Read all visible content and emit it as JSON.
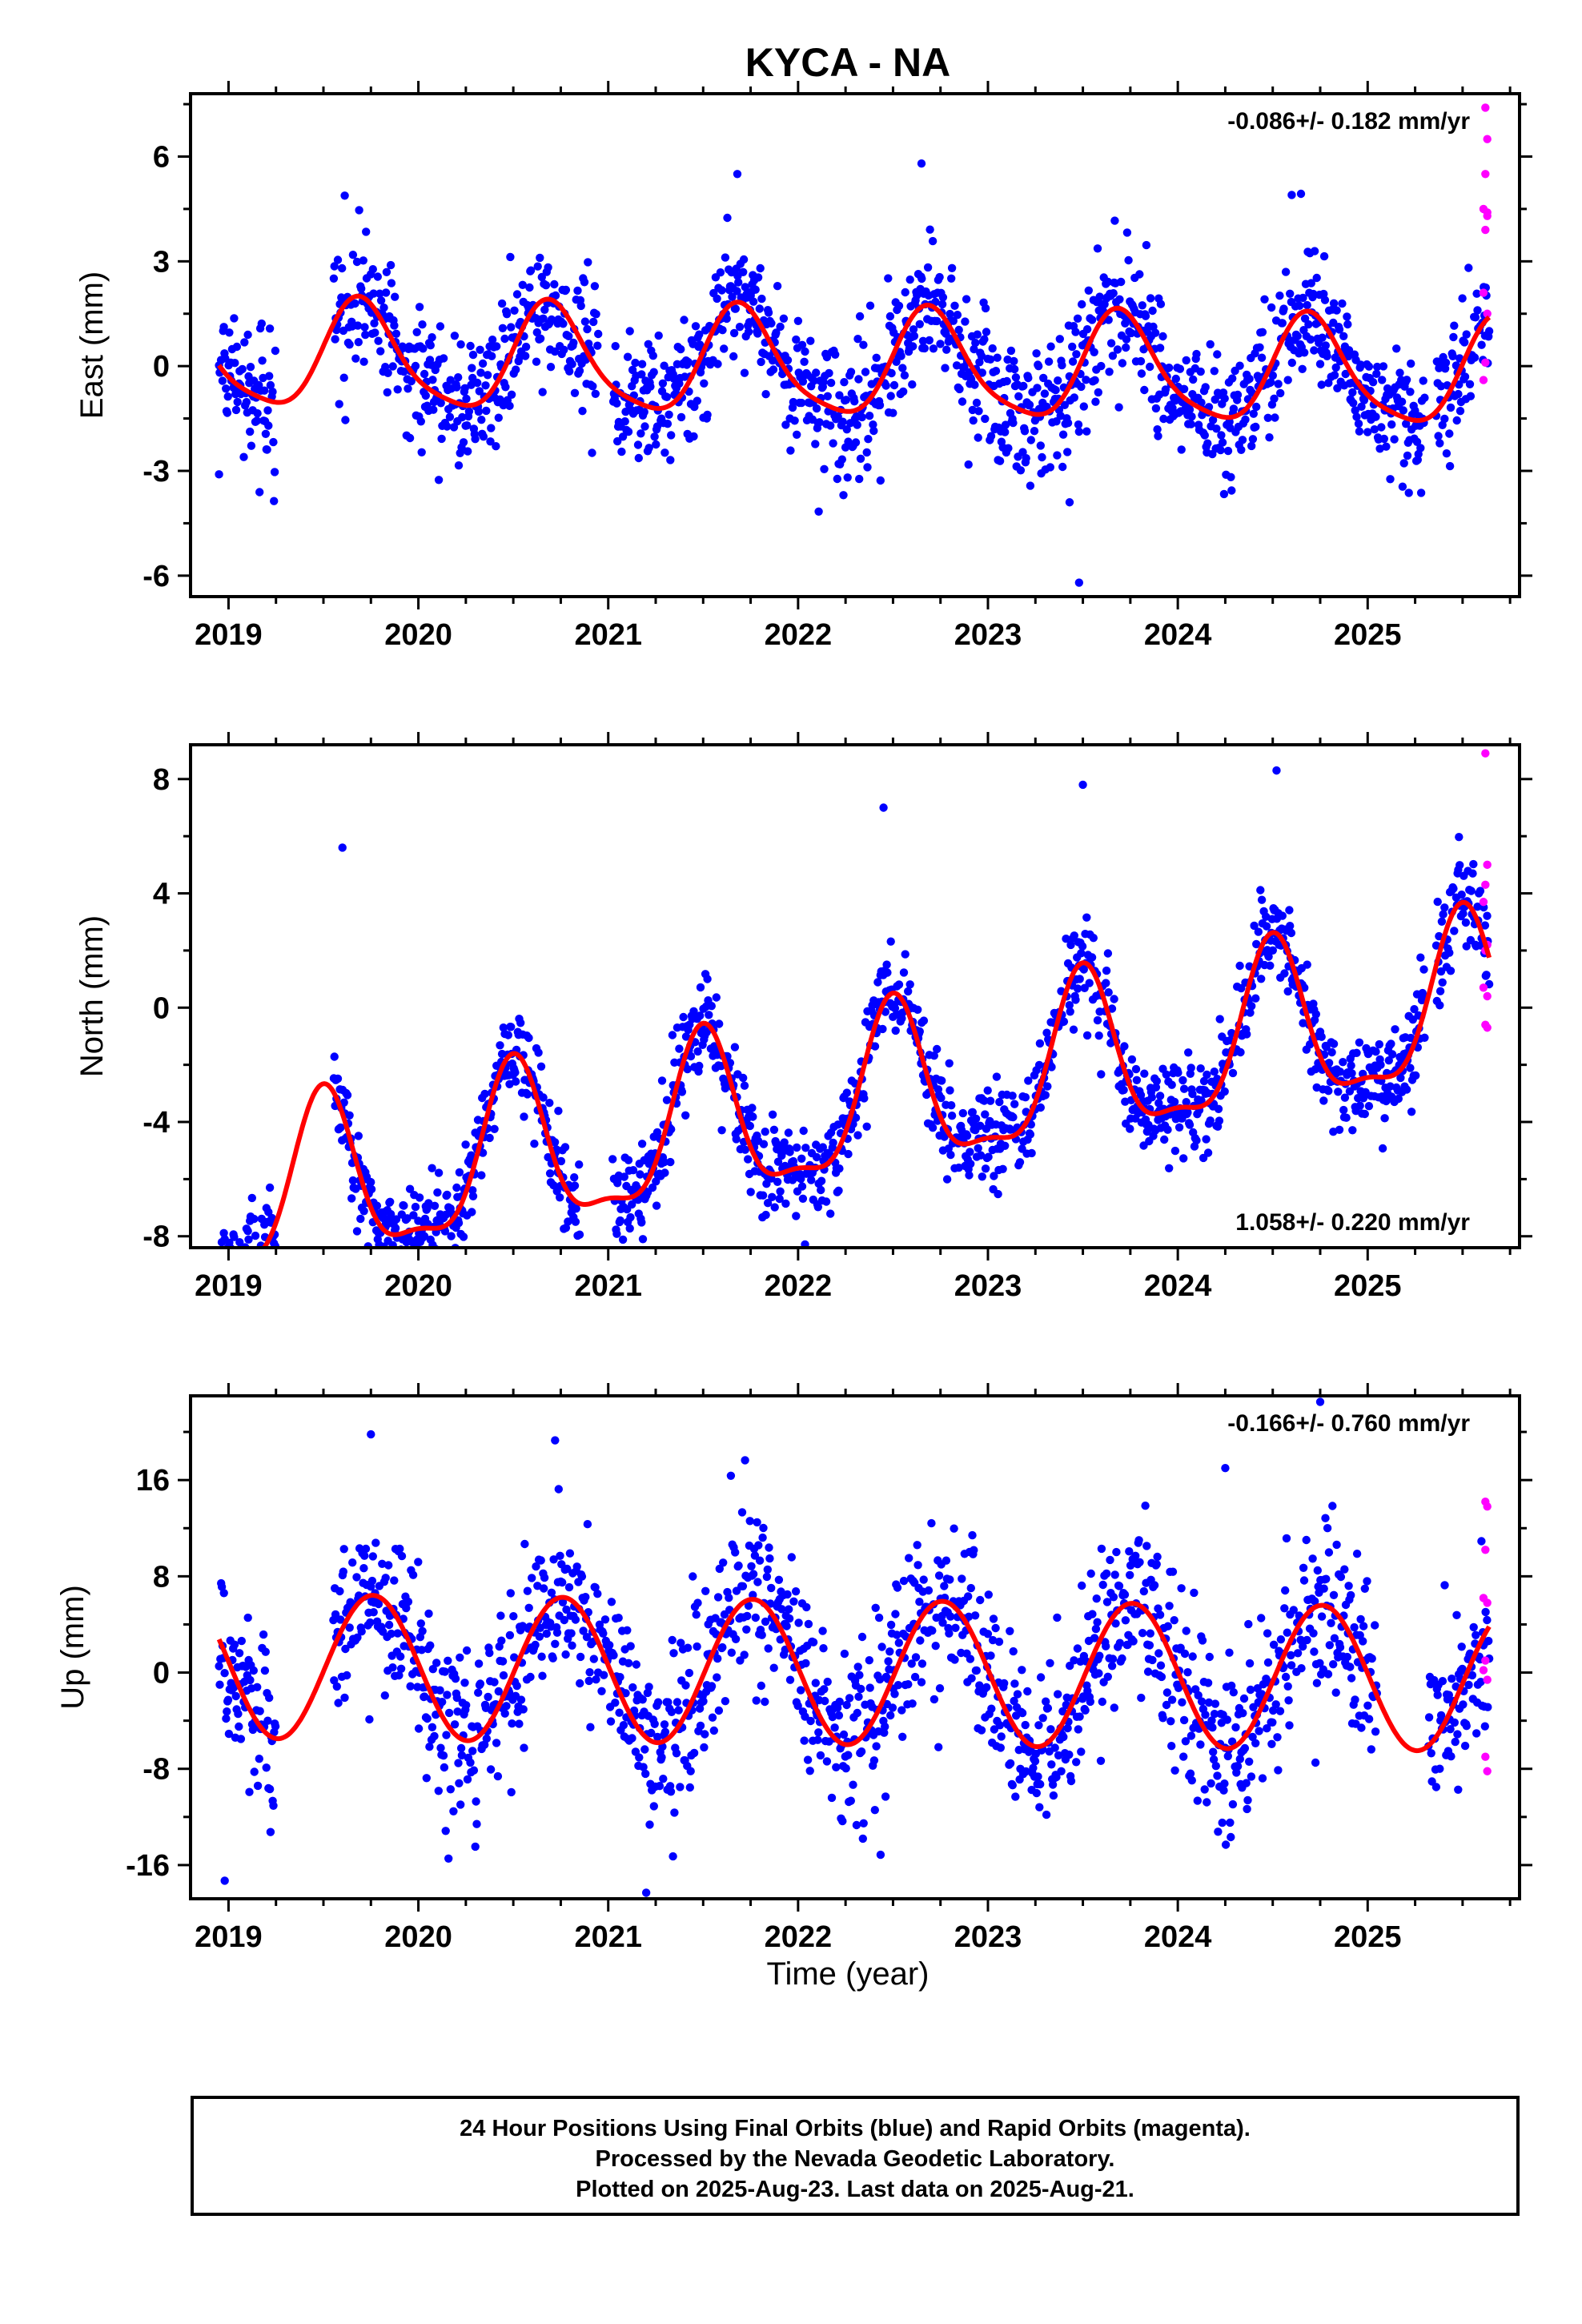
{
  "title": "KYCA - NA",
  "xlabel": "Time (year)",
  "caption": {
    "line1": "24 Hour Positions Using Final Orbits (blue) and Rapid Orbits (magenta).",
    "line2": "Processed by the Nevada Geodetic Laboratory.",
    "line3": "Plotted on 2025-Aug-23. Last data on 2025-Aug-21."
  },
  "colors": {
    "final": "#0000ff",
    "rapid": "#ff00ff",
    "model": "#ff0000",
    "axis": "#000000"
  },
  "chart_data": [
    {
      "type": "scatter",
      "ylabel": "East (mm)",
      "rate_text": "-0.086+/- 0.182 mm/yr",
      "rate_position": "top-right",
      "xlim": [
        2018.8,
        2025.8
      ],
      "ylim": [
        -6.6,
        7.8
      ],
      "x_ticks": [
        2019,
        2020,
        2021,
        2022,
        2023,
        2024,
        2025
      ],
      "y_ticks": [
        -6,
        -3,
        0,
        3,
        6
      ],
      "y_tick_labels": [
        "-6",
        "-3",
        "0",
        "3",
        "6"
      ],
      "x_start": 2018.95,
      "x_end": 2025.64,
      "gaps": [
        [
          2019.25,
          2019.55
        ],
        [
          2020.95,
          2021.02
        ],
        [
          2025.3,
          2025.36
        ]
      ],
      "model": {
        "offset": 0.0,
        "trend": -0.086,
        "annual_amp": 1.5,
        "annual_peak": 2019.7,
        "semi_amp": 0.3,
        "semi_phase": 0.5
      },
      "noise": 0.95,
      "n_points": 1850,
      "rapid_points": [
        {
          "x": 2025.62,
          "y": 7.4
        },
        {
          "x": 2025.63,
          "y": 6.5
        },
        {
          "x": 2025.62,
          "y": 5.5
        },
        {
          "x": 2025.61,
          "y": 4.5
        },
        {
          "x": 2025.63,
          "y": 4.3
        },
        {
          "x": 2025.62,
          "y": 3.9
        },
        {
          "x": 2025.61,
          "y": 2.1
        },
        {
          "x": 2025.63,
          "y": 1.5
        },
        {
          "x": 2025.62,
          "y": 0.1
        },
        {
          "x": 2025.61,
          "y": -0.4
        },
        {
          "x": 2025.63,
          "y": 4.4
        }
      ],
      "outliers": [
        {
          "x": 2022.65,
          "y": 5.8
        },
        {
          "x": 2021.68,
          "y": 5.5
        },
        {
          "x": 2023.48,
          "y": -6.2
        },
        {
          "x": 2023.43,
          "y": -3.9
        },
        {
          "x": 2024.6,
          "y": 4.9
        },
        {
          "x": 2018.95,
          "y": -3.1
        }
      ]
    },
    {
      "type": "scatter",
      "ylabel": "North (mm)",
      "rate_text": "1.058+/- 0.220 mm/yr",
      "rate_position": "bottom-right",
      "xlim": [
        2018.8,
        2025.8
      ],
      "ylim": [
        -8.4,
        9.2
      ],
      "x_ticks": [
        2019,
        2020,
        2021,
        2022,
        2023,
        2024,
        2025
      ],
      "y_ticks": [
        -8,
        -4,
        0,
        4,
        8
      ],
      "y_tick_labels": [
        "-8",
        "-4",
        "0",
        "4",
        "8"
      ],
      "x_start": 2018.95,
      "x_end": 2025.64,
      "gaps": [
        [
          2019.25,
          2019.55
        ],
        [
          2020.85,
          2021.02
        ],
        [
          2025.3,
          2025.36
        ]
      ],
      "model": {
        "offset": -3.4,
        "trend": 1.058,
        "annual_amp": 2.8,
        "annual_peak": 2019.5,
        "semi_amp": 0.9,
        "semi_phase": 0.0
      },
      "noise": 0.85,
      "n_points": 1850,
      "rapid_points": [
        {
          "x": 2025.62,
          "y": 8.9
        },
        {
          "x": 2025.63,
          "y": 5.0
        },
        {
          "x": 2025.62,
          "y": 4.3
        },
        {
          "x": 2025.61,
          "y": 3.7
        },
        {
          "x": 2025.63,
          "y": 2.2
        },
        {
          "x": 2025.62,
          "y": 2.0
        },
        {
          "x": 2025.61,
          "y": 0.7
        },
        {
          "x": 2025.63,
          "y": 0.4
        },
        {
          "x": 2025.62,
          "y": -0.6
        },
        {
          "x": 2025.63,
          "y": -0.7
        }
      ],
      "outliers": [
        {
          "x": 2019.6,
          "y": 5.6
        },
        {
          "x": 2018.98,
          "y": -8.1
        },
        {
          "x": 2024.52,
          "y": 8.3
        },
        {
          "x": 2023.5,
          "y": 7.8
        },
        {
          "x": 2022.45,
          "y": 7.0
        }
      ]
    },
    {
      "type": "scatter",
      "ylabel": "Up (mm)",
      "rate_text": "-0.166+/- 0.760 mm/yr",
      "rate_position": "top-right",
      "xlim": [
        2018.8,
        2025.8
      ],
      "ylim": [
        -18.8,
        23.0
      ],
      "x_ticks": [
        2019,
        2020,
        2021,
        2022,
        2023,
        2024,
        2025
      ],
      "y_ticks": [
        -16,
        -8,
        0,
        8,
        16
      ],
      "y_tick_labels": [
        "-16",
        "-8",
        "0",
        "8",
        "16"
      ],
      "x_start": 2018.95,
      "x_end": 2025.64,
      "gaps": [
        [
          2019.25,
          2019.55
        ],
        [
          2025.05,
          2025.32
        ]
      ],
      "model": {
        "offset": 0.0,
        "trend": -0.166,
        "annual_amp": 6.0,
        "annual_peak": 2019.76,
        "semi_amp": 0.0,
        "semi_phase": 0.0
      },
      "noise": 3.6,
      "n_points": 1800,
      "rapid_points": [
        {
          "x": 2025.62,
          "y": 14.2
        },
        {
          "x": 2025.63,
          "y": 13.8
        },
        {
          "x": 2025.62,
          "y": 10.2
        },
        {
          "x": 2025.61,
          "y": 6.2
        },
        {
          "x": 2025.63,
          "y": 5.8
        },
        {
          "x": 2025.62,
          "y": 1.0
        },
        {
          "x": 2025.61,
          "y": 0.2
        },
        {
          "x": 2025.63,
          "y": -0.6
        },
        {
          "x": 2025.62,
          "y": -7.0
        },
        {
          "x": 2025.63,
          "y": -8.2
        }
      ],
      "outliers": [
        {
          "x": 2019.75,
          "y": 19.8
        },
        {
          "x": 2020.72,
          "y": 19.3
        },
        {
          "x": 2024.75,
          "y": 22.5
        },
        {
          "x": 2021.2,
          "y": -18.3
        },
        {
          "x": 2018.98,
          "y": -17.3
        },
        {
          "x": 2024.25,
          "y": 17.0
        }
      ]
    }
  ]
}
